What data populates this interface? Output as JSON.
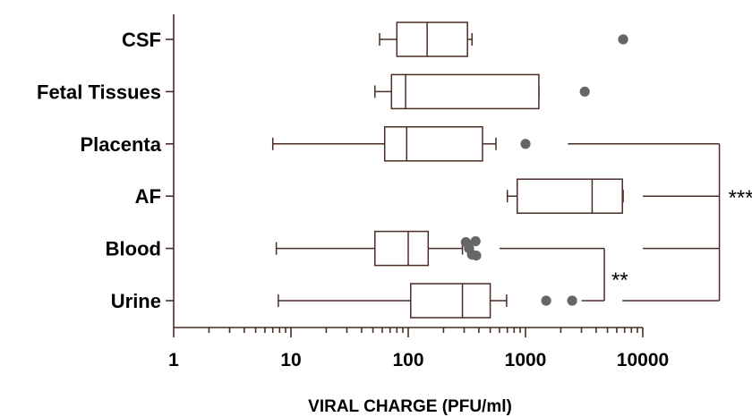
{
  "chart_data": {
    "type": "boxplot",
    "orientation": "horizontal",
    "xlabel": "VIRAL CHARGE (PFU/ml)",
    "xscale": "log",
    "xlim": [
      1,
      10000
    ],
    "xticks": [
      {
        "value": 1,
        "label": "1"
      },
      {
        "value": 10,
        "label": "10"
      },
      {
        "value": 100,
        "label": "100"
      },
      {
        "value": 1000,
        "label": "1000"
      },
      {
        "value": 10000,
        "label": "10000"
      }
    ],
    "categories": [
      "CSF",
      "Fetal Tissues",
      "Placenta",
      "AF",
      "Blood",
      "Urine"
    ],
    "boxes": [
      {
        "name": "CSF",
        "whisker_low": 57,
        "q1": 80,
        "median": 145,
        "q3": 320,
        "whisker_high": 350,
        "outliers": [
          6800
        ]
      },
      {
        "name": "Fetal Tissues",
        "whisker_low": 52,
        "q1": 72,
        "median": 95,
        "q3": 1300,
        "whisker_high": 1300,
        "outliers": [
          3200
        ]
      },
      {
        "name": "Placenta",
        "whisker_low": 7,
        "q1": 63,
        "median": 97,
        "q3": 430,
        "whisker_high": 560,
        "outliers": [
          1000
        ]
      },
      {
        "name": "AF",
        "whisker_low": 700,
        "q1": 850,
        "median": 3700,
        "q3": 6700,
        "whisker_high": 6800,
        "outliers": []
      },
      {
        "name": "Blood",
        "whisker_low": 7.5,
        "q1": 52,
        "median": 100,
        "q3": 148,
        "whisker_high": 290,
        "outliers": [
          310,
          330,
          350,
          375,
          380
        ]
      },
      {
        "name": "Urine",
        "whisker_low": 7.8,
        "q1": 105,
        "median": 290,
        "q3": 500,
        "whisker_high": 690,
        "outliers": [
          1500,
          2500
        ]
      }
    ],
    "significance": [
      {
        "label": "***",
        "groups": [
          "Placenta",
          "Blood",
          "Urine"
        ],
        "vs": "AF",
        "left_x": [
          2300,
          10000,
          6700
        ],
        "right_x": 45000
      },
      {
        "label": "**",
        "groups": [
          "Blood",
          "Urine"
        ],
        "left_x": [
          600,
          3000
        ],
        "right_x": 4700
      }
    ],
    "grid": false,
    "legend": "none",
    "colors": {
      "axis": "#4a2c25",
      "box": "#4a2c25",
      "whisker": "#4a2c25",
      "bracket": "#4a2c25",
      "outlier": "#666666"
    }
  }
}
